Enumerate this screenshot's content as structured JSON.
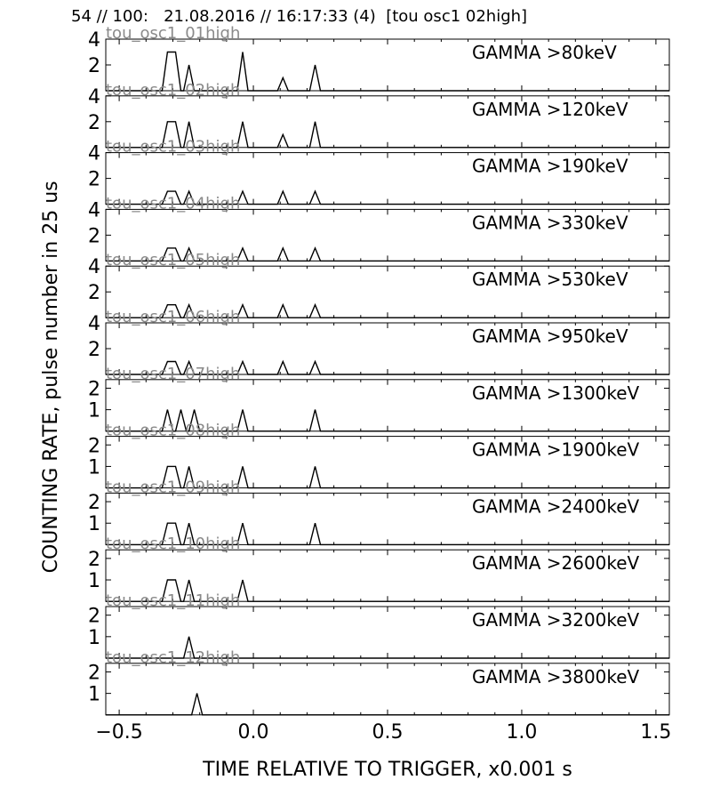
{
  "header": "54 // 100:   21.08.2016 // 16:17:33 (4)  [tou osc1 02high]",
  "chart_data": {
    "type": "line",
    "xlabel": "TIME RELATIVE TO TRIGGER,   x0.001 s",
    "ylabel": "COUNTING RATE,    pulse number in 25 us",
    "xlim": [
      -0.55,
      1.55
    ],
    "xticks": [
      -0.5,
      0.0,
      0.5,
      1.0,
      1.5
    ],
    "xtick_labels": [
      "−0.5",
      "0.0",
      "0.5",
      "1.0",
      "1.5"
    ],
    "panels": [
      {
        "label": "GAMMA >80keV",
        "channel": "tou_osc1_01high",
        "ylim": [
          0,
          4
        ],
        "yticks": [
          2,
          4
        ],
        "peaks": [
          {
            "x": -0.32,
            "x2": -0.29,
            "y": 3
          },
          {
            "x": -0.24,
            "y": 2
          },
          {
            "x": -0.04,
            "y": 3
          },
          {
            "x": 0.11,
            "y": 1
          },
          {
            "x": 0.23,
            "y": 2
          }
        ]
      },
      {
        "label": "GAMMA >120keV",
        "channel": "tou_osc1_02high",
        "ylim": [
          0,
          4
        ],
        "yticks": [
          2,
          4
        ],
        "peaks": [
          {
            "x": -0.32,
            "x2": -0.29,
            "y": 2
          },
          {
            "x": -0.24,
            "y": 2
          },
          {
            "x": -0.04,
            "y": 2
          },
          {
            "x": 0.11,
            "y": 1
          },
          {
            "x": 0.23,
            "y": 2
          }
        ]
      },
      {
        "label": "GAMMA >190keV",
        "channel": "tou_osc1_03high",
        "ylim": [
          0,
          4
        ],
        "yticks": [
          2,
          4
        ],
        "peaks": [
          {
            "x": -0.32,
            "x2": -0.29,
            "y": 1
          },
          {
            "x": -0.24,
            "y": 1
          },
          {
            "x": -0.04,
            "y": 1
          },
          {
            "x": 0.11,
            "y": 1
          },
          {
            "x": 0.23,
            "y": 1
          }
        ]
      },
      {
        "label": "GAMMA >330keV",
        "channel": "tou_osc1_04high",
        "ylim": [
          0,
          4
        ],
        "yticks": [
          2,
          4
        ],
        "peaks": [
          {
            "x": -0.32,
            "x2": -0.29,
            "y": 1
          },
          {
            "x": -0.24,
            "y": 1
          },
          {
            "x": -0.04,
            "y": 1
          },
          {
            "x": 0.11,
            "y": 1
          },
          {
            "x": 0.23,
            "y": 1
          }
        ]
      },
      {
        "label": "GAMMA >530keV",
        "channel": "tou_osc1_05high",
        "ylim": [
          0,
          4
        ],
        "yticks": [
          2,
          4
        ],
        "peaks": [
          {
            "x": -0.32,
            "x2": -0.29,
            "y": 1
          },
          {
            "x": -0.24,
            "y": 1
          },
          {
            "x": -0.04,
            "y": 1
          },
          {
            "x": 0.11,
            "y": 1
          },
          {
            "x": 0.23,
            "y": 1
          }
        ]
      },
      {
        "label": "GAMMA >950keV",
        "channel": "tou_osc1_06high",
        "ylim": [
          0,
          4
        ],
        "yticks": [
          2,
          4
        ],
        "peaks": [
          {
            "x": -0.32,
            "x2": -0.29,
            "y": 1
          },
          {
            "x": -0.24,
            "y": 1
          },
          {
            "x": -0.04,
            "y": 1
          },
          {
            "x": 0.11,
            "y": 1
          },
          {
            "x": 0.23,
            "y": 1
          }
        ]
      },
      {
        "label": "GAMMA >1300keV",
        "channel": "tou_osc1_07high",
        "ylim": [
          0,
          2.4
        ],
        "yticks": [
          1,
          2
        ],
        "peaks": [
          {
            "x": -0.32,
            "y": 1
          },
          {
            "x": -0.27,
            "y": 1
          },
          {
            "x": -0.22,
            "y": 1
          },
          {
            "x": -0.04,
            "y": 1
          },
          {
            "x": 0.23,
            "y": 1
          }
        ]
      },
      {
        "label": "GAMMA >1900keV",
        "channel": "tou_osc1_08high",
        "ylim": [
          0,
          2.4
        ],
        "yticks": [
          1,
          2
        ],
        "peaks": [
          {
            "x": -0.32,
            "x2": -0.29,
            "y": 1
          },
          {
            "x": -0.24,
            "y": 1
          },
          {
            "x": -0.04,
            "y": 1
          },
          {
            "x": 0.23,
            "y": 1
          }
        ]
      },
      {
        "label": "GAMMA >2400keV",
        "channel": "tou_osc1_09high",
        "ylim": [
          0,
          2.4
        ],
        "yticks": [
          1,
          2
        ],
        "peaks": [
          {
            "x": -0.32,
            "x2": -0.29,
            "y": 1
          },
          {
            "x": -0.24,
            "y": 1
          },
          {
            "x": -0.04,
            "y": 1
          },
          {
            "x": 0.23,
            "y": 1
          }
        ]
      },
      {
        "label": "GAMMA >2600keV",
        "channel": "tou_osc1_10high",
        "ylim": [
          0,
          2.4
        ],
        "yticks": [
          1,
          2
        ],
        "peaks": [
          {
            "x": -0.32,
            "x2": -0.29,
            "y": 1
          },
          {
            "x": -0.24,
            "y": 1
          },
          {
            "x": -0.04,
            "y": 1
          }
        ]
      },
      {
        "label": "GAMMA >3200keV",
        "channel": "tou_osc1_11high",
        "ylim": [
          0,
          2.4
        ],
        "yticks": [
          1,
          2
        ],
        "peaks": [
          {
            "x": -0.24,
            "y": 1
          }
        ]
      },
      {
        "label": "GAMMA >3800keV",
        "channel": "tou_osc1_12high",
        "ylim": [
          0,
          2.4
        ],
        "yticks": [
          1,
          2
        ],
        "peaks": [
          {
            "x": -0.21,
            "y": 1
          }
        ]
      }
    ]
  }
}
